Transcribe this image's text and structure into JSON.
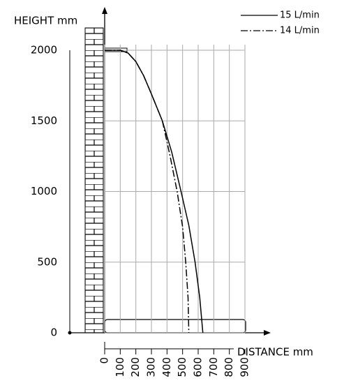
{
  "chart_data": {
    "type": "line",
    "y_label": "HEIGHT mm",
    "x_label": "DISTANCE mm",
    "xlim": [
      0,
      900
    ],
    "ylim": [
      0,
      2000
    ],
    "xticks": [
      0,
      100,
      200,
      300,
      400,
      500,
      600,
      700,
      800,
      900
    ],
    "yticks": [
      0,
      500,
      1000,
      1500,
      2000
    ],
    "grid": true,
    "series": [
      {
        "name": "15 L/min",
        "color": "#000000",
        "dash": "solid",
        "x": [
          0,
          100,
          150,
          200,
          250,
          300,
          370,
          430,
          490,
          540,
          580,
          610,
          630
        ],
        "values": [
          2000,
          2000,
          1980,
          1920,
          1820,
          1690,
          1500,
          1280,
          1000,
          760,
          500,
          250,
          0
        ]
      },
      {
        "name": "14 L/min",
        "color": "#000000",
        "dash": "dashdot",
        "x": [
          0,
          100,
          150,
          200,
          250,
          300,
          370,
          420,
          465,
          500,
          520,
          535,
          540
        ],
        "values": [
          2000,
          2000,
          1980,
          1920,
          1820,
          1690,
          1500,
          1250,
          1000,
          750,
          500,
          250,
          0
        ]
      }
    ]
  }
}
